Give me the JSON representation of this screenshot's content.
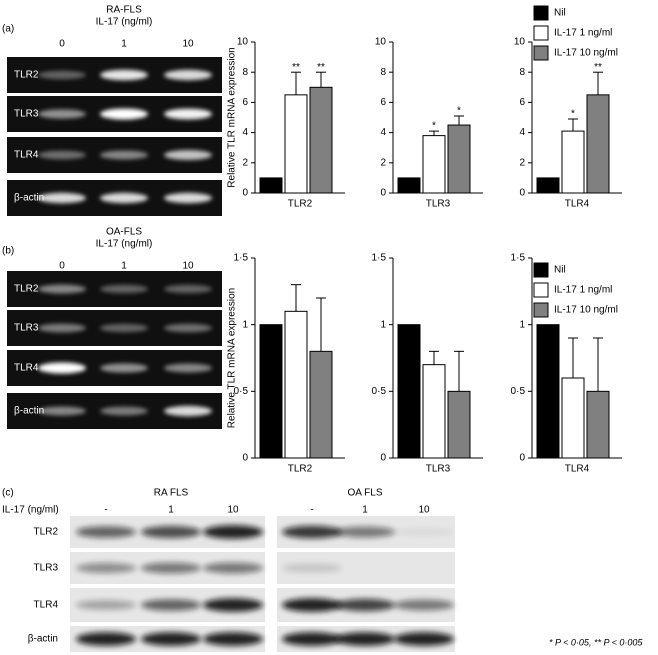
{
  "gels": {
    "a": {
      "label": "(a)",
      "title": "RA-FLS",
      "subtitle": "IL-17 (ng/ml)",
      "lanes": [
        "0",
        "1",
        "10"
      ],
      "rows": [
        "TLR2",
        "TLR3",
        "TLR4",
        "β-actin"
      ]
    },
    "b": {
      "label": "(b)",
      "title": "OA-FLS",
      "subtitle": "IL-17 (ng/ml)",
      "lanes": [
        "0",
        "1",
        "10"
      ],
      "rows": [
        "TLR2",
        "TLR3",
        "TLR4",
        "β-actin"
      ]
    },
    "c": {
      "label": "(c)",
      "xlabel": "IL-17 (ng/ml)",
      "groups": [
        {
          "title": "RA FLS",
          "lanes": [
            "-",
            "1",
            "10"
          ]
        },
        {
          "title": "OA FLS",
          "lanes": [
            "-",
            "1",
            "10"
          ]
        }
      ],
      "rows": [
        "TLR2",
        "TLR3",
        "TLR4",
        "β-actin"
      ],
      "footnote": "* P < 0·05, ** P < 0·005"
    }
  },
  "chart_data": [
    {
      "type": "bar",
      "ylabel": "Relative TLR mRNA expression",
      "categories": [
        "TLR2",
        "TLR3",
        "TLR4"
      ],
      "axes": [
        {
          "ylim": [
            0,
            10
          ],
          "yticks": [
            0,
            2,
            4,
            6,
            8,
            10
          ]
        },
        {
          "ylim": [
            0,
            10
          ],
          "yticks": [
            0,
            2,
            4,
            6,
            8,
            10
          ]
        },
        {
          "ylim": [
            0,
            10
          ],
          "yticks": [
            0,
            2,
            4,
            6,
            8,
            10
          ]
        }
      ],
      "legend": "top-right",
      "series": [
        {
          "name": "Nil",
          "color": "#000000",
          "values": [
            1,
            1,
            1
          ],
          "errors": [
            null,
            null,
            null
          ]
        },
        {
          "name": "IL-17 1 ng/ml",
          "color": "#ffffff",
          "values": [
            6.5,
            3.8,
            4.1
          ],
          "errors": [
            1.5,
            0.3,
            0.8
          ],
          "annotations": [
            "**",
            "*",
            "*"
          ]
        },
        {
          "name": "IL-17 10 ng/ml",
          "color": "#808080",
          "values": [
            7.0,
            4.5,
            6.5
          ],
          "errors": [
            1.0,
            0.6,
            1.5
          ],
          "annotations": [
            "**",
            "*",
            "**"
          ]
        }
      ]
    },
    {
      "type": "bar",
      "ylabel": "Relative TLR mRNA expression",
      "categories": [
        "TLR2",
        "TLR3",
        "TLR4"
      ],
      "axes": [
        {
          "ylim": [
            0,
            1.5
          ],
          "yticks": [
            0,
            {
              "value": 0.5,
              "label": "0·5"
            },
            1,
            {
              "value": 1.5,
              "label": "1·5"
            }
          ]
        },
        {
          "ylim": [
            0,
            1.5
          ],
          "yticks": [
            0,
            {
              "value": 0.5,
              "label": "0·5"
            },
            1,
            {
              "value": 1.5,
              "label": "1·5"
            }
          ]
        },
        {
          "ylim": [
            0,
            1.5
          ],
          "yticks": [
            0,
            {
              "value": 0.5,
              "label": "0·5"
            },
            1,
            {
              "value": 1.5,
              "label": "1·5"
            }
          ]
        }
      ],
      "legend": "top-right",
      "series": [
        {
          "name": "Nil",
          "color": "#000000",
          "values": [
            1.0,
            1.0,
            1.0
          ],
          "errors": [
            null,
            null,
            null
          ]
        },
        {
          "name": "IL-17 1 ng/ml",
          "color": "#ffffff",
          "values": [
            1.1,
            0.7,
            0.6
          ],
          "errors": [
            0.2,
            0.1,
            0.3
          ]
        },
        {
          "name": "IL-17 10 ng/ml",
          "color": "#808080",
          "values": [
            0.8,
            0.5,
            0.5
          ],
          "errors": [
            0.4,
            0.3,
            0.4
          ]
        }
      ]
    }
  ]
}
